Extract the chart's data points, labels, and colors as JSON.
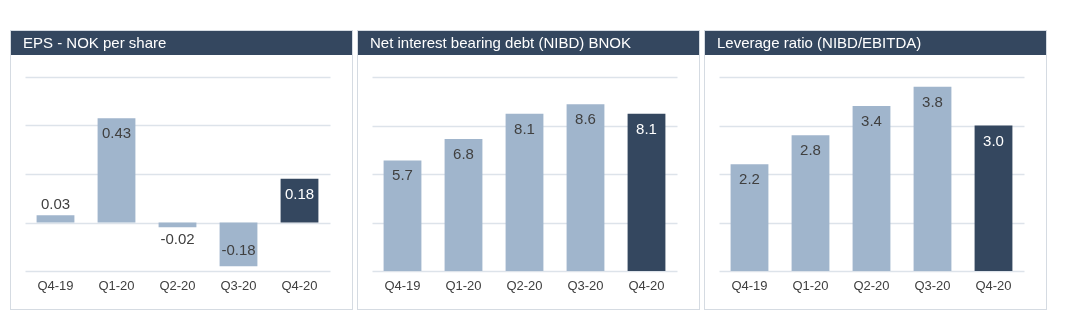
{
  "chart_data": [
    {
      "type": "bar",
      "title": "EPS - NOK per share",
      "categories": [
        "Q4-19",
        "Q1-20",
        "Q2-20",
        "Q3-20",
        "Q4-20"
      ],
      "values": [
        0.03,
        0.43,
        -0.02,
        -0.18,
        0.18
      ],
      "value_labels": [
        "0.03",
        "0.43",
        "-0.02",
        "-0.18",
        "0.18"
      ],
      "colors": [
        "#a0b5cc",
        "#a0b5cc",
        "#a0b5cc",
        "#a0b5cc",
        "#34475f"
      ],
      "ylim": [
        -0.2,
        0.6
      ],
      "yticks": [
        {
          "value": -0.2,
          "label": null
        },
        {
          "value": 0,
          "label": null
        },
        {
          "value": 0.2,
          "label": null
        },
        {
          "value": 0.4,
          "label": null
        },
        {
          "value": 0.6,
          "label": null
        }
      ],
      "grid": "y",
      "tick_labels": "x"
    },
    {
      "type": "bar",
      "title": "Net interest bearing debt (NIBD) BNOK",
      "categories": [
        "Q4-19",
        "Q1-20",
        "Q2-20",
        "Q3-20",
        "Q4-20"
      ],
      "values": [
        5.7,
        6.8,
        8.1,
        8.6,
        8.1
      ],
      "value_labels": [
        "5.7",
        "6.8",
        "8.1",
        "8.6",
        "8.1"
      ],
      "colors": [
        "#a0b5cc",
        "#a0b5cc",
        "#a0b5cc",
        "#a0b5cc",
        "#34475f"
      ],
      "ylim": [
        0,
        10
      ],
      "yticks": [
        {
          "value": 0,
          "label": null
        },
        {
          "value": 2.5,
          "label": null
        },
        {
          "value": 5,
          "label": null
        },
        {
          "value": 7.5,
          "label": null
        },
        {
          "value": 10,
          "label": null
        }
      ],
      "grid": "y",
      "tick_labels": "x"
    },
    {
      "type": "bar",
      "title": "Leverage ratio (NIBD/EBITDA)",
      "categories": [
        "Q4-19",
        "Q1-20",
        "Q2-20",
        "Q3-20",
        "Q4-20"
      ],
      "values": [
        2.2,
        2.8,
        3.4,
        3.8,
        3.0
      ],
      "value_labels": [
        "2.2",
        "2.8",
        "3.4",
        "3.8",
        "3.0"
      ],
      "colors": [
        "#a0b5cc",
        "#a0b5cc",
        "#a0b5cc",
        "#a0b5cc",
        "#34475f"
      ],
      "ylim": [
        0,
        4
      ],
      "yticks": [
        {
          "value": 0,
          "label": null
        },
        {
          "value": 1,
          "label": null
        },
        {
          "value": 2,
          "label": null
        },
        {
          "value": 3,
          "label": null
        },
        {
          "value": 4,
          "label": null
        }
      ],
      "grid": "y",
      "tick_labels": "x"
    }
  ]
}
